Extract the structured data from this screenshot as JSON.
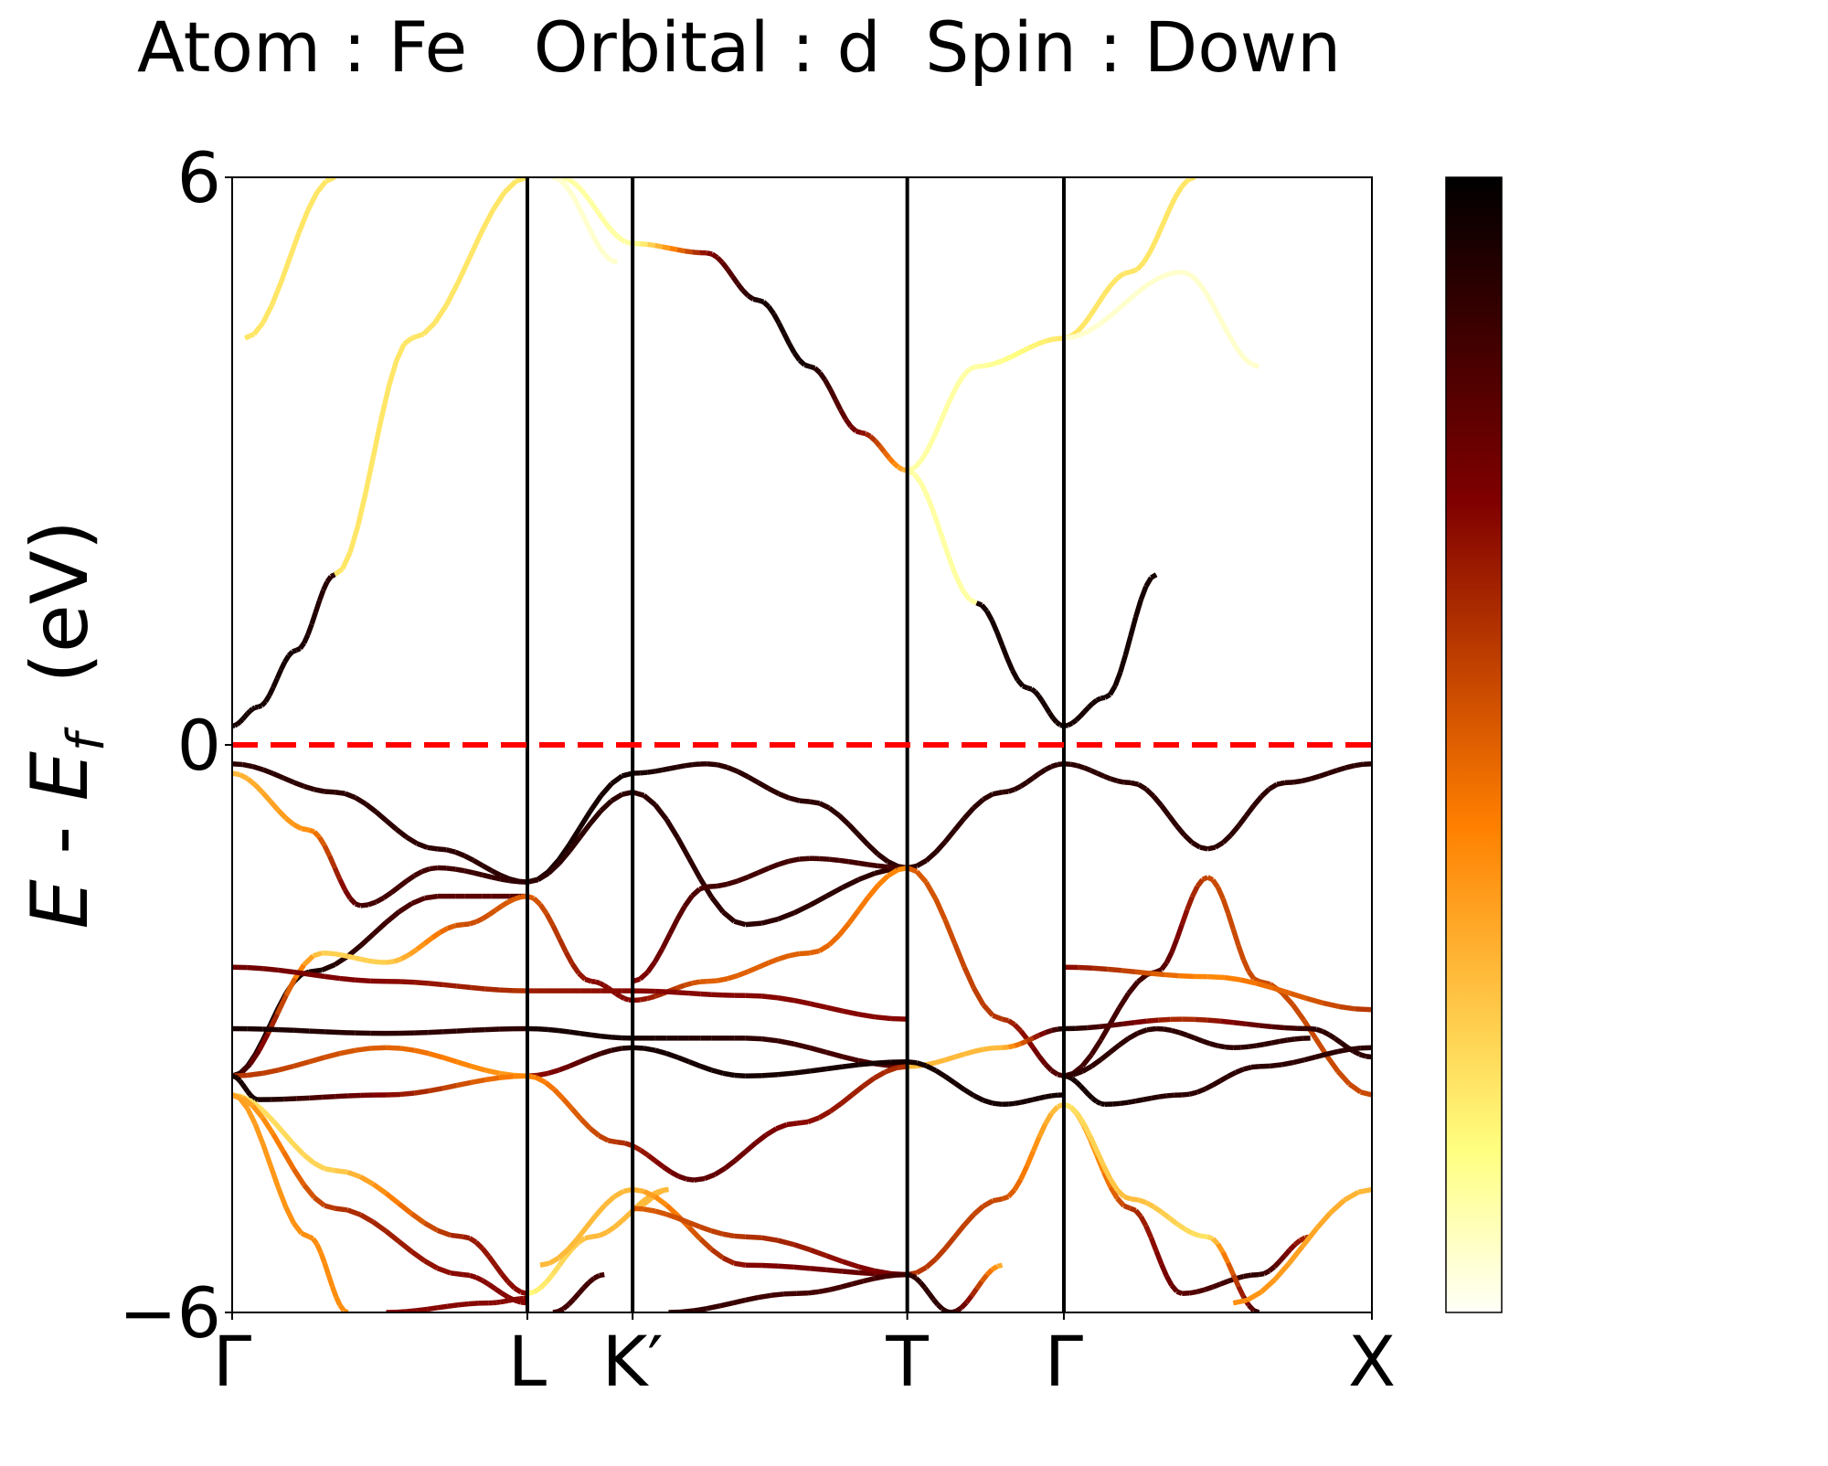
{
  "chart_data": {
    "type": "line",
    "title": "Atom : Fe   Orbital : d  Spin : Down",
    "ylabel_parts": {
      "italic1": "E",
      "mid": " - ",
      "italic2": "E",
      "sub": "f",
      "unit": "  (eV)"
    },
    "xlabel": "",
    "ylim": [
      -6,
      6
    ],
    "yticks": [
      {
        "value": 6,
        "label": "6"
      },
      {
        "value": 0,
        "label": "0"
      },
      {
        "value": -6,
        "label": "−6"
      }
    ],
    "xlim": [
      0,
      4.44
    ],
    "kpoints": [
      {
        "label": "Γ",
        "x": 0
      },
      {
        "label": "L",
        "x": 1.15
      },
      {
        "label": "K′",
        "x": 1.56
      },
      {
        "label": "T",
        "x": 2.63
      },
      {
        "label": "Γ",
        "x": 3.24
      },
      {
        "label": "X",
        "x": 4.44
      }
    ],
    "fermi_level": 0,
    "fermi_color": "#ff0000",
    "colormap": "afmhot_r",
    "colormap_stops": [
      "#fffff8",
      "#ffff80",
      "#ffc040",
      "#ff8000",
      "#c04000",
      "#800000",
      "#400000",
      "#000000"
    ],
    "colorbar": {
      "min": 0,
      "max": 1
    },
    "series": [
      {
        "x": [
          0.05,
          0.4
        ],
        "y": [
          4.3,
          6.0
        ],
        "w": [
          0.2,
          0.2
        ]
      },
      {
        "x": [
          0.4,
          0.7,
          1.15
        ],
        "y": [
          1.8,
          4.3,
          6.0
        ],
        "w": [
          0.2,
          0.2,
          0.2
        ]
      },
      {
        "x": [
          1.28,
          1.56,
          1.85,
          2.05,
          2.25,
          2.45,
          2.63
        ],
        "y": [
          6.0,
          5.3,
          5.2,
          4.7,
          4.0,
          3.3,
          2.9
        ],
        "w": [
          0.1,
          0.1,
          0.7,
          0.95,
          0.95,
          0.7,
          0.3
        ]
      },
      {
        "x": [
          2.63,
          2.9,
          3.24,
          3.5,
          3.75
        ],
        "y": [
          2.9,
          4.0,
          4.3,
          5.0,
          6.0
        ],
        "w": [
          0.1,
          0.1,
          0.2,
          0.2,
          0.2
        ]
      },
      {
        "x": [
          3.24,
          3.7,
          4.0
        ],
        "y": [
          4.3,
          5.0,
          4.0
        ],
        "w": [
          0.05,
          0.05,
          0.05
        ]
      },
      {
        "x": [
          1.25,
          1.5
        ],
        "y": [
          6.0,
          5.1
        ],
        "w": [
          0.05,
          0.05
        ]
      },
      {
        "x": [
          2.63,
          2.9
        ],
        "y": [
          2.9,
          1.5
        ],
        "w": [
          0.1,
          0.1
        ]
      },
      {
        "x": [
          0.0,
          0.1,
          0.25,
          0.4
        ],
        "y": [
          0.2,
          0.4,
          1.0,
          1.8
        ],
        "w": [
          0.95,
          0.95,
          0.95,
          0.9
        ]
      },
      {
        "x": [
          2.9,
          3.1,
          3.24,
          3.4,
          3.6
        ],
        "y": [
          1.5,
          0.6,
          0.2,
          0.5,
          1.8
        ],
        "w": [
          0.95,
          0.95,
          0.95,
          0.95,
          0.95
        ]
      },
      {
        "x": [
          0.0,
          0.4,
          0.8,
          1.15
        ],
        "y": [
          -0.2,
          -0.5,
          -1.1,
          -1.45
        ],
        "w": [
          0.9,
          0.9,
          0.9,
          0.9
        ]
      },
      {
        "x": [
          1.15,
          1.56,
          1.85,
          2.25,
          2.63
        ],
        "y": [
          -1.45,
          -0.3,
          -0.2,
          -0.6,
          -1.3
        ],
        "w": [
          0.95,
          0.95,
          0.9,
          0.9,
          0.9
        ]
      },
      {
        "x": [
          2.63,
          3.0,
          3.24,
          3.5,
          3.8
        ],
        "y": [
          -1.3,
          -0.5,
          -0.2,
          -0.4,
          -1.1
        ],
        "w": [
          0.9,
          0.9,
          0.9,
          0.9,
          0.9
        ]
      },
      {
        "x": [
          3.8,
          4.1,
          4.44
        ],
        "y": [
          -1.1,
          -0.4,
          -0.2
        ],
        "w": [
          0.9,
          0.9,
          0.9
        ]
      },
      {
        "x": [
          0.0,
          0.3,
          0.5,
          0.8,
          1.15
        ],
        "y": [
          -0.3,
          -0.9,
          -1.7,
          -1.3,
          -1.45
        ],
        "w": [
          0.3,
          0.4,
          0.85,
          0.85,
          0.9
        ]
      },
      {
        "x": [
          1.15,
          1.56,
          2.0,
          2.63
        ],
        "y": [
          -1.45,
          -0.5,
          -1.9,
          -1.3
        ],
        "w": [
          0.9,
          0.9,
          0.9,
          0.9
        ]
      },
      {
        "x": [
          2.63,
          2.25,
          1.85,
          1.56
        ],
        "y": [
          -1.3,
          -1.2,
          -1.5,
          -2.5
        ],
        "w": [
          0.85,
          0.85,
          0.85,
          0.7
        ]
      },
      {
        "x": [
          0.0,
          0.3,
          0.8,
          1.15
        ],
        "y": [
          -3.5,
          -2.4,
          -1.6,
          -1.6
        ],
        "w": [
          0.95,
          0.95,
          0.8,
          0.8
        ]
      },
      {
        "x": [
          0.0,
          0.35,
          0.6,
          0.9,
          1.15
        ],
        "y": [
          -3.5,
          -2.2,
          -2.3,
          -1.9,
          -1.6
        ],
        "w": [
          0.95,
          0.25,
          0.25,
          0.55,
          0.5
        ]
      },
      {
        "x": [
          1.15,
          1.4,
          1.56,
          1.85,
          2.25,
          2.63
        ],
        "y": [
          -1.6,
          -2.5,
          -2.7,
          -2.5,
          -2.2,
          -1.3
        ],
        "w": [
          0.5,
          0.7,
          0.7,
          0.5,
          0.5,
          0.4
        ]
      },
      {
        "x": [
          2.63,
          3.0,
          3.24
        ],
        "y": [
          -1.3,
          -2.9,
          -3.5
        ],
        "w": [
          0.5,
          0.6,
          0.85
        ]
      },
      {
        "x": [
          3.24,
          3.6,
          3.8,
          4.0,
          4.44
        ],
        "y": [
          -3.5,
          -2.4,
          -1.4,
          -2.5,
          -3.7
        ],
        "w": [
          0.85,
          0.85,
          0.55,
          0.55,
          0.55
        ]
      },
      {
        "x": [
          0.0,
          0.6,
          1.15
        ],
        "y": [
          -2.35,
          -2.5,
          -2.6
        ],
        "w": [
          0.75,
          0.7,
          0.6
        ]
      },
      {
        "x": [
          1.15,
          1.56,
          2.0,
          2.63
        ],
        "y": [
          -2.6,
          -2.6,
          -2.65,
          -2.9
        ],
        "w": [
          0.65,
          0.7,
          0.7,
          0.7
        ]
      },
      {
        "x": [
          3.24,
          3.8,
          4.44
        ],
        "y": [
          -2.35,
          -2.45,
          -2.8
        ],
        "w": [
          0.7,
          0.4,
          0.6
        ]
      },
      {
        "x": [
          0.0,
          0.6,
          1.15
        ],
        "y": [
          -3.0,
          -3.05,
          -3.0
        ],
        "w": [
          0.95,
          0.9,
          0.9
        ]
      },
      {
        "x": [
          1.15,
          1.56,
          2.0,
          2.63
        ],
        "y": [
          -3.0,
          -3.1,
          -3.1,
          -3.4
        ],
        "w": [
          0.95,
          0.95,
          0.9,
          0.8
        ]
      },
      {
        "x": [
          2.63,
          3.0,
          3.24
        ],
        "y": [
          -3.4,
          -3.2,
          -3.0
        ],
        "w": [
          0.3,
          0.3,
          0.95
        ]
      },
      {
        "x": [
          3.24,
          3.7,
          4.2,
          4.44
        ],
        "y": [
          -3.0,
          -2.9,
          -3.0,
          -3.3
        ],
        "w": [
          0.95,
          0.6,
          0.9,
          0.9
        ]
      },
      {
        "x": [
          0.0,
          0.6,
          1.15
        ],
        "y": [
          -3.5,
          -3.2,
          -3.5
        ],
        "w": [
          0.6,
          0.5,
          0.35
        ]
      },
      {
        "x": [
          1.15,
          1.56,
          2.0,
          2.63
        ],
        "y": [
          -3.5,
          -3.2,
          -3.5,
          -3.35
        ],
        "w": [
          0.65,
          0.95,
          0.95,
          0.95
        ]
      },
      {
        "x": [
          2.63,
          3.0,
          3.24
        ],
        "y": [
          -3.35,
          -3.8,
          -3.7
        ],
        "w": [
          0.95,
          0.95,
          0.95
        ]
      },
      {
        "x": [
          0.0,
          0.1,
          0.6,
          1.15
        ],
        "y": [
          -3.5,
          -3.75,
          -3.7,
          -3.5
        ],
        "w": [
          0.95,
          0.95,
          0.7,
          0.4
        ]
      },
      {
        "x": [
          1.15,
          1.5,
          1.8,
          2.2,
          2.63
        ],
        "y": [
          -3.5,
          -4.2,
          -4.6,
          -4.0,
          -3.4
        ],
        "w": [
          0.4,
          0.6,
          0.8,
          0.7,
          0.6
        ]
      },
      {
        "x": [
          3.24,
          3.4,
          3.7,
          4.0,
          4.44
        ],
        "y": [
          -3.5,
          -3.8,
          -3.7,
          -3.4,
          -3.2
        ],
        "w": [
          0.95,
          0.95,
          0.9,
          0.9,
          0.9
        ]
      },
      {
        "x": [
          3.24,
          3.6,
          3.9,
          4.2
        ],
        "y": [
          -3.5,
          -3.0,
          -3.2,
          -3.1
        ],
        "w": [
          0.9,
          0.9,
          0.9,
          0.9
        ]
      },
      {
        "x": [
          0.0,
          0.4,
          0.9,
          1.15
        ],
        "y": [
          -3.7,
          -4.5,
          -5.2,
          -5.8
        ],
        "w": [
          0.2,
          0.25,
          0.65,
          0.7
        ]
      },
      {
        "x": [
          0.0,
          0.4,
          0.9,
          1.15
        ],
        "y": [
          -3.7,
          -4.9,
          -5.6,
          -5.9
        ],
        "w": [
          0.3,
          0.6,
          0.7,
          0.7
        ]
      },
      {
        "x": [
          0.0,
          0.3,
          0.45
        ],
        "y": [
          -3.7,
          -5.2,
          -6.0
        ],
        "w": [
          0.35,
          0.4,
          0.4
        ]
      },
      {
        "x": [
          1.15,
          1.4,
          1.7,
          1.56
        ],
        "y": [
          -5.8,
          -5.2,
          -4.7,
          -4.9
        ],
        "w": [
          0.15,
          0.3,
          0.3,
          0.3
        ]
      },
      {
        "x": [
          1.2,
          1.56,
          2.0,
          2.63
        ],
        "y": [
          -5.5,
          -4.7,
          -5.5,
          -5.6
        ],
        "w": [
          0.3,
          0.3,
          0.7,
          0.8
        ]
      },
      {
        "x": [
          1.56,
          2.0,
          2.63
        ],
        "y": [
          -4.9,
          -5.2,
          -5.6
        ],
        "w": [
          0.5,
          0.6,
          0.75
        ]
      },
      {
        "x": [
          2.63,
          3.0,
          3.24
        ],
        "y": [
          -5.6,
          -4.8,
          -3.8
        ],
        "w": [
          0.6,
          0.55,
          0.25
        ]
      },
      {
        "x": [
          2.63,
          2.8,
          3.0
        ],
        "y": [
          -5.6,
          -6.0,
          -5.5
        ],
        "w": [
          0.9,
          0.9,
          0.3
        ]
      },
      {
        "x": [
          3.24,
          3.5,
          3.7,
          4.0,
          4.2
        ],
        "y": [
          -3.8,
          -4.9,
          -5.8,
          -5.6,
          -5.2
        ],
        "w": [
          0.2,
          0.6,
          0.8,
          0.9,
          0.6
        ]
      },
      {
        "x": [
          3.24,
          3.5,
          3.8,
          4.0
        ],
        "y": [
          -3.8,
          -4.8,
          -5.2,
          -6.0
        ],
        "w": [
          0.2,
          0.3,
          0.2,
          0.9
        ]
      },
      {
        "x": [
          3.9,
          4.44
        ],
        "y": [
          -5.9,
          -4.7
        ],
        "w": [
          0.4,
          0.3
        ]
      },
      {
        "x": [
          1.7,
          2.2,
          2.63
        ],
        "y": [
          -6.0,
          -5.8,
          -5.6
        ],
        "w": [
          0.9,
          0.85,
          0.85
        ]
      },
      {
        "x": [
          1.25,
          1.45
        ],
        "y": [
          -6.0,
          -5.6
        ],
        "w": [
          0.85,
          0.85
        ]
      },
      {
        "x": [
          0.6,
          1.0,
          1.15
        ],
        "y": [
          -6.0,
          -5.9,
          -5.85
        ],
        "w": [
          0.7,
          0.7,
          0.7
        ]
      }
    ]
  }
}
